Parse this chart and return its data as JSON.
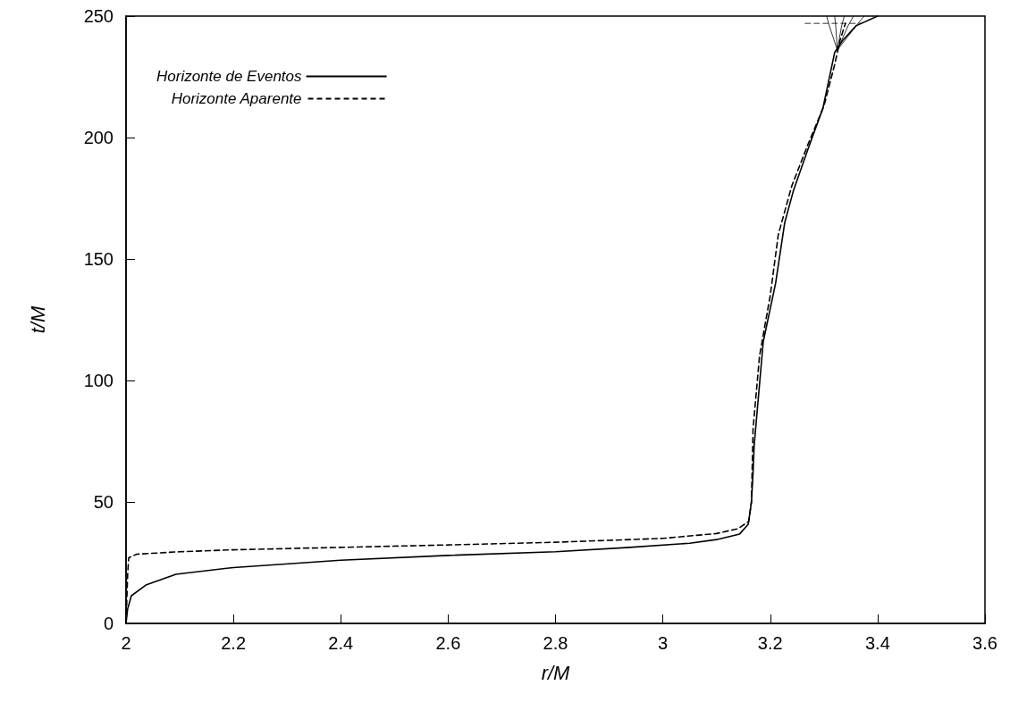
{
  "chart_data": {
    "type": "line",
    "xlabel": "r/M",
    "ylabel": "t/M",
    "xlim": [
      2,
      3.6
    ],
    "ylim": [
      0,
      250
    ],
    "xticks": [
      2,
      2.2,
      2.4,
      2.6,
      2.8,
      3,
      3.2,
      3.4,
      3.6
    ],
    "yticks": [
      0,
      50,
      100,
      150,
      200,
      250
    ],
    "grid": false,
    "marker": "none",
    "legend": "top left",
    "series": [
      {
        "name": "Horizonte de Eventos",
        "color": "#000000",
        "line_style": "solid",
        "x": [
          2,
          2.003,
          2.01,
          2.037,
          2.093,
          2.2,
          2.4,
          2.6,
          2.8,
          2.932,
          3.05,
          3.1,
          3.143,
          3.159,
          3.165,
          3.168,
          3.17,
          3.187,
          3.21,
          3.227,
          3.243,
          3.27,
          3.298,
          3.32,
          3.335,
          3.36,
          3.4
        ],
        "values": [
          0,
          6,
          11.4,
          15.8,
          20.2,
          23,
          26,
          28,
          29.5,
          31.2,
          33,
          34.5,
          36.8,
          40.8,
          50,
          62,
          73,
          116,
          140,
          165,
          178,
          195,
          212,
          235,
          240,
          246,
          250
        ]
      },
      {
        "name": "Horizonte Aparente",
        "color": "#000000",
        "line_style": "dashed",
        "x": [
          2,
          2.003,
          2.005,
          2.02,
          2.1,
          2.2,
          2.4,
          2.6,
          2.8,
          3,
          3.1,
          3.14,
          3.16,
          3.165,
          3.168,
          3.18,
          3.2,
          3.215,
          3.24,
          3.27,
          3.3,
          3.32,
          3.33,
          3.34
        ],
        "values": [
          0,
          20,
          27,
          28.5,
          29.5,
          30.3,
          31.3,
          32.3,
          33.4,
          35,
          37,
          39,
          42,
          50,
          80,
          110,
          135,
          160,
          180,
          197,
          213,
          230,
          240,
          247
        ]
      },
      {
        "color": "#000000",
        "line_style": "dashed",
        "x": [
          3.265,
          3.37
        ],
        "values": [
          247,
          247
        ]
      },
      {
        "color": "#000000",
        "line_style": "solid",
        "x": [
          3.325,
          3.31,
          3.305
        ],
        "values": [
          236,
          246,
          250
        ]
      },
      {
        "color": "#000000",
        "line_style": "solid",
        "x": [
          3.325,
          3.322,
          3.32
        ],
        "values": [
          236,
          246,
          250
        ]
      },
      {
        "color": "#000000",
        "line_style": "solid",
        "x": [
          3.325,
          3.333,
          3.338
        ],
        "values": [
          236,
          246,
          250
        ]
      },
      {
        "color": "#000000",
        "line_style": "solid",
        "x": [
          3.325,
          3.345,
          3.355
        ],
        "values": [
          236,
          246,
          250
        ]
      },
      {
        "color": "#000000",
        "line_style": "solid",
        "x": [
          3.325,
          3.36,
          3.375
        ],
        "values": [
          236,
          246,
          250
        ]
      }
    ]
  }
}
